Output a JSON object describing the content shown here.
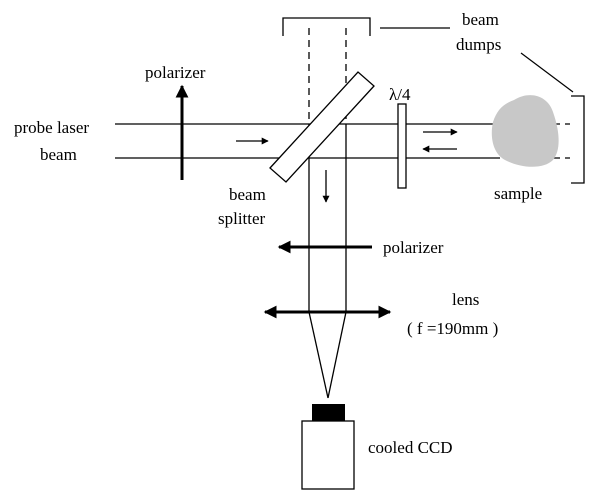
{
  "labels": {
    "probe_line1": "probe laser",
    "probe_line2": "beam",
    "polarizer_input": "polarizer",
    "quarter_wave": "λ/4",
    "beam_dumps_line1": "beam",
    "beam_dumps_line2": "dumps",
    "sample": "sample",
    "beam_splitter_line1": "beam",
    "beam_splitter_line2": "splitter",
    "polarizer_analyzer": "polarizer",
    "lens": "lens",
    "focal_length": "( f =190mm )",
    "detector": "cooled CCD"
  },
  "colors": {
    "line": "#000000",
    "sample_fill": "#c8c8c8",
    "background": "#ffffff"
  }
}
